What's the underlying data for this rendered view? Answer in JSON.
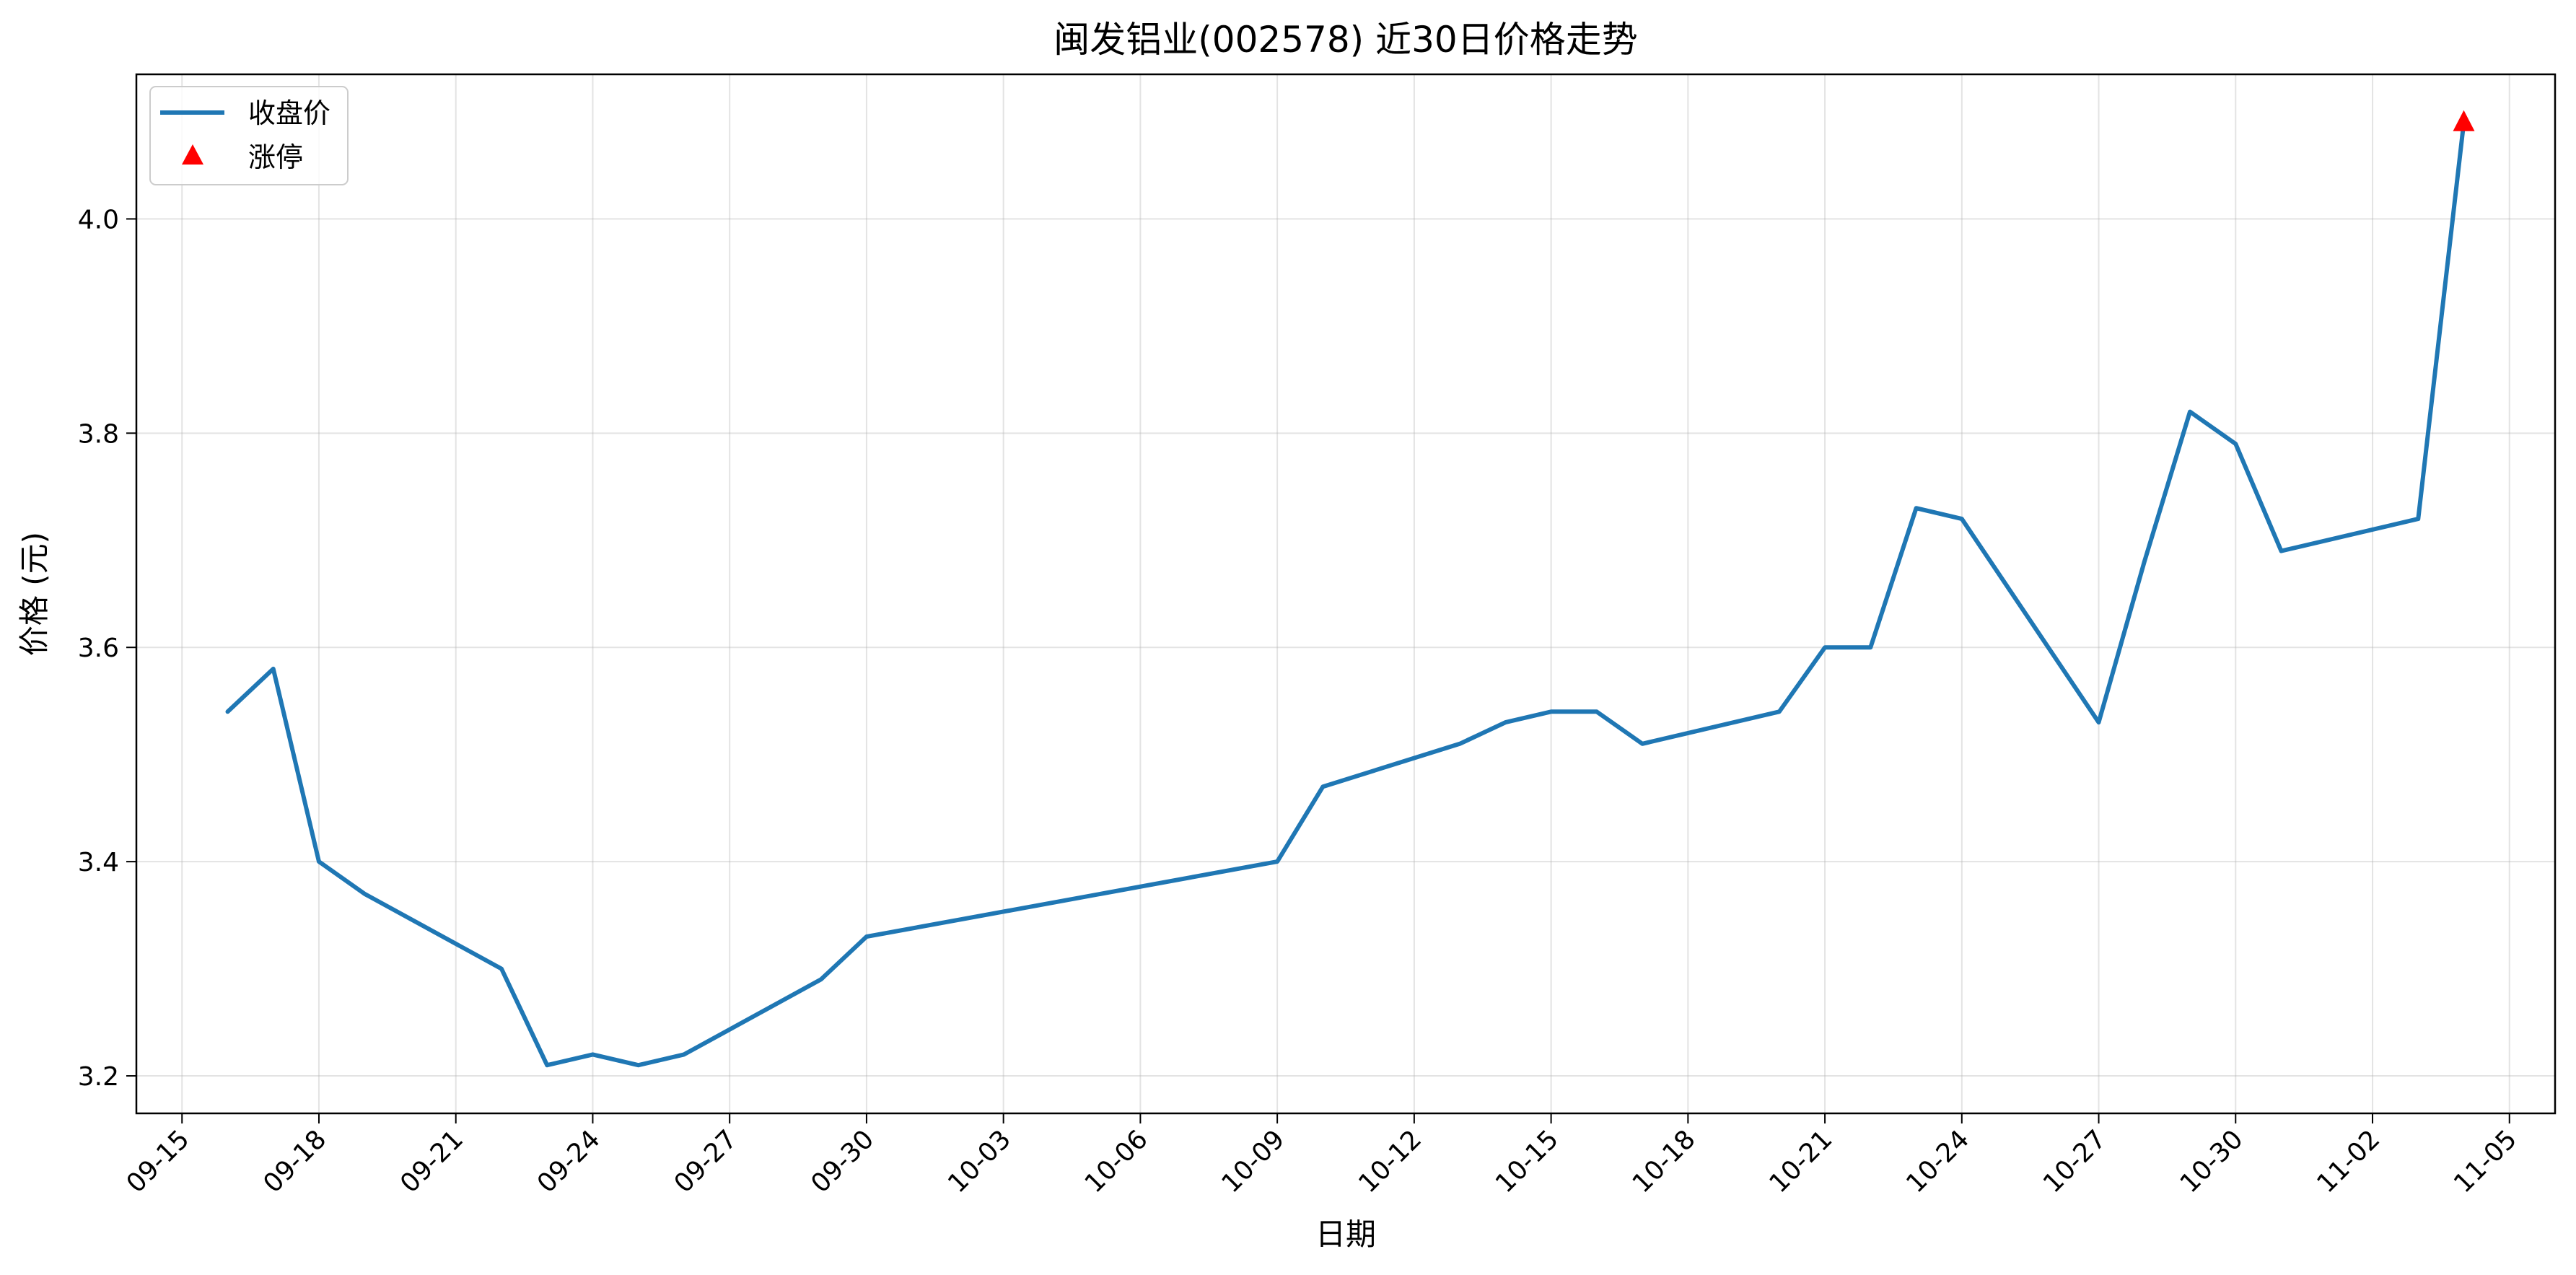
{
  "chart_data": {
    "type": "line",
    "title": "闽发铝业(002578) 近30日价格走势",
    "xlabel": "日期",
    "ylabel": "价格 (元)",
    "xlim": [
      "2025-09-14",
      "2025-11-06"
    ],
    "ylim": [
      3.165,
      4.135
    ],
    "x_ticks": [
      "09-15",
      "09-18",
      "09-21",
      "09-24",
      "09-27",
      "09-30",
      "10-03",
      "10-06",
      "10-09",
      "10-12",
      "10-15",
      "10-18",
      "10-21",
      "10-24",
      "10-27",
      "10-30",
      "11-02",
      "11-05"
    ],
    "y_ticks": [
      "3.2",
      "3.4",
      "3.6",
      "3.8",
      "4.0"
    ],
    "grid": true,
    "legend_position": "top-left",
    "series": [
      {
        "name": "收盘价",
        "color": "#1f77b4",
        "points": [
          {
            "x": "2025-09-16",
            "y": 3.54
          },
          {
            "x": "2025-09-17",
            "y": 3.58
          },
          {
            "x": "2025-09-18",
            "y": 3.4
          },
          {
            "x": "2025-09-19",
            "y": 3.37
          },
          {
            "x": "2025-09-22",
            "y": 3.3
          },
          {
            "x": "2025-09-23",
            "y": 3.21
          },
          {
            "x": "2025-09-24",
            "y": 3.22
          },
          {
            "x": "2025-09-25",
            "y": 3.21
          },
          {
            "x": "2025-09-26",
            "y": 3.22
          },
          {
            "x": "2025-09-29",
            "y": 3.29
          },
          {
            "x": "2025-09-30",
            "y": 3.33
          },
          {
            "x": "2025-10-09",
            "y": 3.4
          },
          {
            "x": "2025-10-10",
            "y": 3.47
          },
          {
            "x": "2025-10-13",
            "y": 3.51
          },
          {
            "x": "2025-10-14",
            "y": 3.53
          },
          {
            "x": "2025-10-15",
            "y": 3.54
          },
          {
            "x": "2025-10-16",
            "y": 3.54
          },
          {
            "x": "2025-10-17",
            "y": 3.51
          },
          {
            "x": "2025-10-20",
            "y": 3.54
          },
          {
            "x": "2025-10-21",
            "y": 3.6
          },
          {
            "x": "2025-10-22",
            "y": 3.6
          },
          {
            "x": "2025-10-23",
            "y": 3.73
          },
          {
            "x": "2025-10-24",
            "y": 3.72
          },
          {
            "x": "2025-10-27",
            "y": 3.53
          },
          {
            "x": "2025-10-28",
            "y": 3.68
          },
          {
            "x": "2025-10-29",
            "y": 3.82
          },
          {
            "x": "2025-10-30",
            "y": 3.79
          },
          {
            "x": "2025-10-31",
            "y": 3.69
          },
          {
            "x": "2025-11-03",
            "y": 3.72
          },
          {
            "x": "2025-11-04",
            "y": 4.09
          }
        ]
      },
      {
        "name": "涨停",
        "color": "#ff0000",
        "marker": "triangle",
        "points": [
          {
            "x": "2025-11-04",
            "y": 4.09
          }
        ]
      }
    ]
  }
}
